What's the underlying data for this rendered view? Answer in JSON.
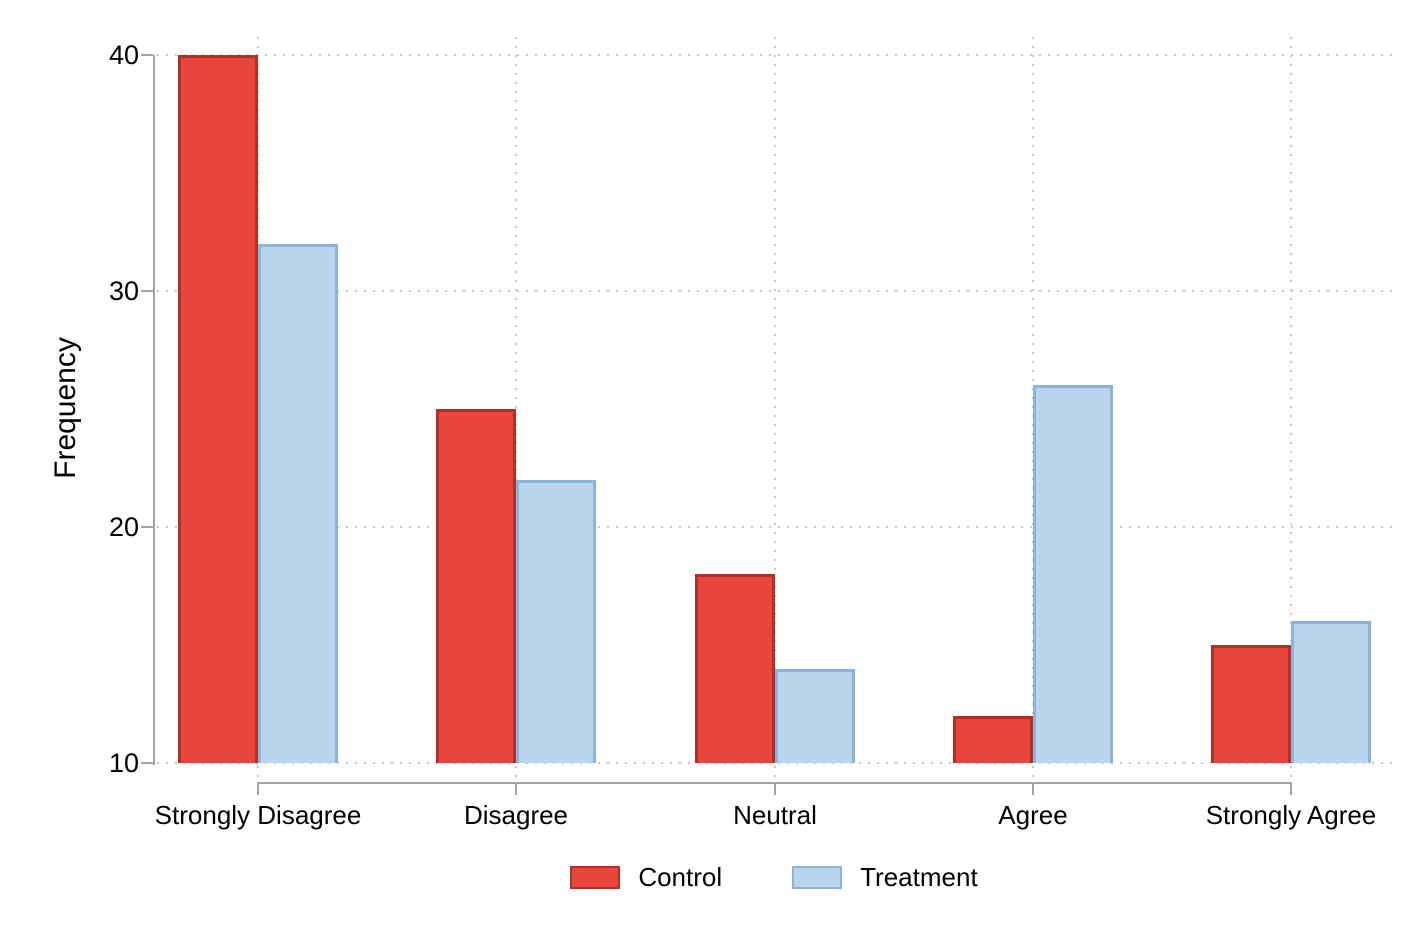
{
  "chart_data": {
    "type": "bar",
    "title": "",
    "categories": [
      "Strongly Disagree",
      "Disagree",
      "Neutral",
      "Agree",
      "Strongly Agree"
    ],
    "series": [
      {
        "name": "Control",
        "values": [
          40,
          25,
          18,
          12,
          15
        ],
        "fill": "#e8453c",
        "border": "#b03128"
      },
      {
        "name": "Treatment",
        "values": [
          32,
          22,
          14,
          26,
          16
        ],
        "fill": "#b9d5ec",
        "border": "#8cb4da"
      }
    ],
    "xlabel": "",
    "ylabel": "Frequency",
    "ylim": [
      10,
      40
    ],
    "yticks": [
      10,
      20,
      30,
      40
    ],
    "grid": "dotted horizontal and vertical gridlines",
    "legend_position": "bottom-center",
    "colors": {
      "control_fill": "#e8453c",
      "control_border": "#b03128",
      "treatment_fill": "#b9d5ec",
      "treatment_border": "#8cb4da",
      "axis": "#a3a3a3",
      "gridline": "#c9c9c9",
      "text": "#000000",
      "background": "#ffffff"
    }
  }
}
